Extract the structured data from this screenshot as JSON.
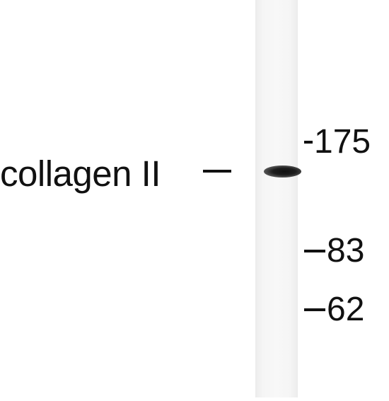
{
  "blot": {
    "protein_label": "collagen II",
    "markers": [
      {
        "label": "175"
      },
      {
        "label": "83"
      },
      {
        "label": "62"
      }
    ]
  }
}
